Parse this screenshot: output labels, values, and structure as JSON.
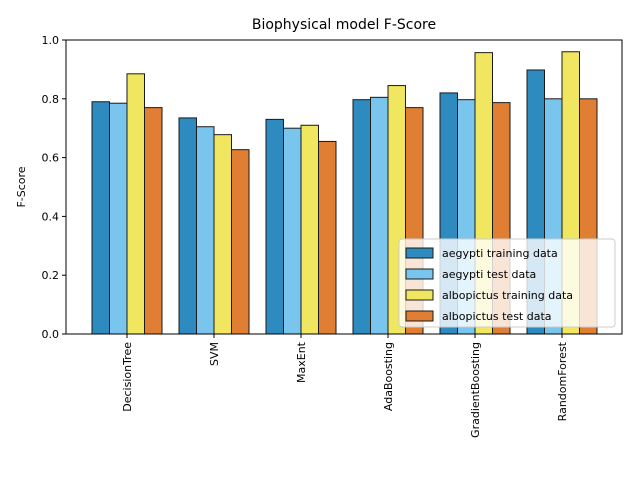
{
  "chart_data": {
    "type": "bar",
    "title": "Biophysical model F-Score",
    "xlabel": "",
    "ylabel": "F-Score",
    "ylim": [
      0,
      1.0
    ],
    "yticks": [
      "0.0",
      "0.2",
      "0.4",
      "0.6",
      "0.8",
      "1.0"
    ],
    "categories": [
      "DecisionTree",
      "SVM",
      "MaxEnt",
      "AdaBoosting",
      "GradientBoosting",
      "RandomForest"
    ],
    "series": [
      {
        "name": "aegypti training data",
        "color": "#2e8bc0",
        "values": [
          0.79,
          0.735,
          0.73,
          0.797,
          0.82,
          0.898
        ]
      },
      {
        "name": "aegypti test data",
        "color": "#7ac5ee",
        "values": [
          0.785,
          0.705,
          0.7,
          0.805,
          0.797,
          0.8
        ]
      },
      {
        "name": "albopictus training data",
        "color": "#f0e660",
        "values": [
          0.885,
          0.678,
          0.71,
          0.845,
          0.957,
          0.96
        ]
      },
      {
        "name": "albopictus test data",
        "color": "#e07f33",
        "values": [
          0.77,
          0.627,
          0.655,
          0.77,
          0.787,
          0.8
        ]
      }
    ],
    "legend_position": "lower-right",
    "grid": false
  }
}
